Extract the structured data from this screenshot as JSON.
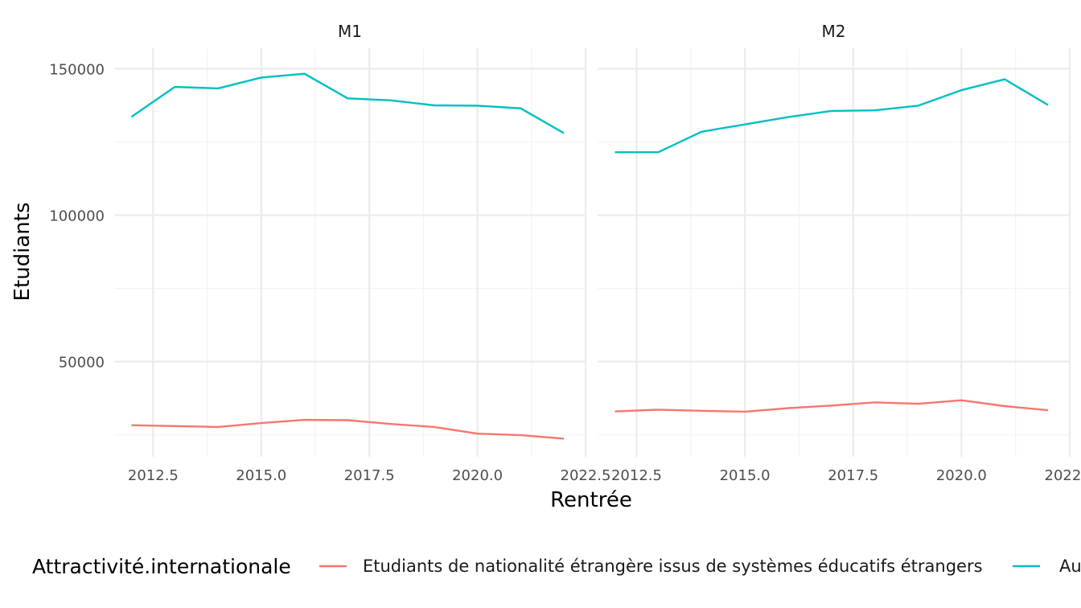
{
  "chart_data": {
    "type": "line",
    "facets": [
      "M1",
      "M2"
    ],
    "xlabel": "Rentrée",
    "ylabel": "Etudiants",
    "xlim": [
      2011.6,
      2022.5
    ],
    "ylim": [
      17500,
      157000
    ],
    "x_ticks": [
      2012.5,
      2015.0,
      2017.5,
      2020.0,
      2022.5
    ],
    "x_tick_labels": [
      "2012.5",
      "2015.0",
      "2017.5",
      "2020.0",
      "2022.5"
    ],
    "y_ticks": [
      50000,
      100000,
      150000
    ],
    "y_tick_labels": [
      "50000",
      "100000",
      "150000"
    ],
    "grid": true,
    "legend_title": "Attractivité.internationale",
    "legend_position": "bottom",
    "series": [
      {
        "name": "Etudiants de nationalité étrangère issus de systèmes éducatifs étrangers",
        "color": "#F8766D",
        "panels": {
          "M1": {
            "x": [
              2012,
              2013,
              2014,
              2015,
              2016,
              2017,
              2018,
              2019,
              2020,
              2021,
              2022
            ],
            "y": [
              28300,
              28000,
              27700,
              29000,
              30100,
              30000,
              28700,
              27700,
              25400,
              24900,
              23700
            ]
          },
          "M2": {
            "x": [
              2012,
              2013,
              2014,
              2015,
              2016,
              2017,
              2018,
              2019,
              2020,
              2021,
              2022
            ],
            "y": [
              33000,
              33600,
              33200,
              32900,
              34100,
              35000,
              36100,
              35600,
              36800,
              34800,
              33400
            ]
          }
        }
      },
      {
        "name": "Au",
        "color": "#00BFC4",
        "panels": {
          "M1": {
            "x": [
              2012,
              2013,
              2014,
              2015,
              2016,
              2017,
              2018,
              2019,
              2020,
              2021,
              2022
            ],
            "y": [
              133600,
              143800,
              143300,
              147000,
              148300,
              139900,
              139200,
              137500,
              137400,
              136500,
              128000
            ]
          },
          "M2": {
            "x": [
              2012,
              2013,
              2014,
              2015,
              2016,
              2017,
              2018,
              2019,
              2020,
              2021,
              2022
            ],
            "y": [
              121500,
              121500,
              128500,
              131000,
              133500,
              135600,
              135800,
              137400,
              142700,
              146400,
              137600
            ]
          }
        }
      }
    ]
  }
}
